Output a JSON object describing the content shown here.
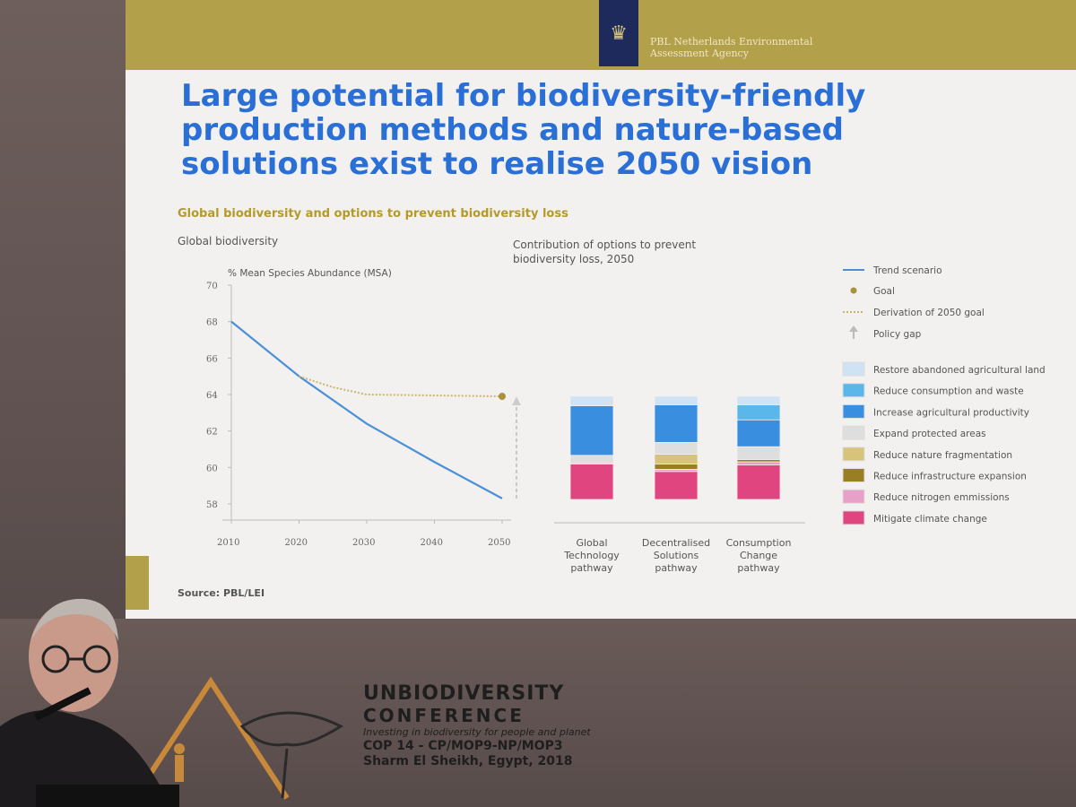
{
  "slide": {
    "agency_line1": "PBL Netherlands Environmental",
    "agency_line2": "Assessment Agency",
    "title_line1": "Large potential for biodiversity-friendly",
    "title_line2": "production methods and nature-based",
    "title_line3": "solutions exist to realise 2050 vision",
    "subtitle": "Global biodiversity and options to prevent biodiversity loss",
    "left_panel_title": "Global biodiversity",
    "right_panel_title_line1": "Contribution of options to prevent",
    "right_panel_title_line2": "biodiversity loss, 2050",
    "source": "Source: PBL/LEI"
  },
  "conference": {
    "line1_un": "UN",
    "line1_bio": "BIODIVERSITY",
    "line2": "CONFERENCE",
    "line3": "Investing in biodiversity for people and planet",
    "line4": "COP 14 - CP/MOP9-NP/MOP3",
    "line5": "Sharm El Sheikh, Egypt, 2018"
  },
  "chart_data": [
    {
      "type": "line",
      "ylabel": "% Mean Species Abundance (MSA)",
      "xlim": [
        2010,
        2050
      ],
      "ylim": [
        58,
        70
      ],
      "xticks": [
        "2010",
        "2020",
        "2030",
        "2040",
        "2050"
      ],
      "yticks": [
        "58",
        "60",
        "62",
        "64",
        "66",
        "68",
        "70"
      ],
      "grid": false,
      "series": [
        {
          "name": "Trend scenario",
          "color": "#4a90d9",
          "style": "solid",
          "x": [
            2010,
            2020,
            2030,
            2040,
            2050
          ],
          "y": [
            68.0,
            65.0,
            62.4,
            60.3,
            58.3
          ]
        },
        {
          "name": "Derivation of 2050 goal",
          "color": "#c9b86a",
          "style": "dotted",
          "x": [
            2020,
            2025,
            2030,
            2040,
            2050
          ],
          "y": [
            65.0,
            64.4,
            64.0,
            63.95,
            63.9
          ]
        }
      ],
      "goal": {
        "name": "Goal",
        "x": 2050,
        "y": 63.9,
        "color": "#a8923a"
      },
      "policy_gap": {
        "name": "Policy gap",
        "x": 2050,
        "from": 58.3,
        "to": 63.9
      }
    },
    {
      "type": "bar",
      "stacked": true,
      "categories": [
        "Global Technology pathway",
        "Decentralised Solutions pathway",
        "Consumption Change pathway"
      ],
      "category_lines": [
        [
          "Global",
          "Technology",
          "pathway"
        ],
        [
          "Decentralised",
          "Solutions",
          "pathway"
        ],
        [
          "Consumption",
          "Change",
          "pathway"
        ]
      ],
      "legend_placement": "right",
      "series": [
        {
          "name": "Mitigate climate change",
          "color": "#e0457f",
          "values": [
            3.3,
            2.6,
            3.2
          ]
        },
        {
          "name": "Reduce nitrogen emmissions",
          "color": "#e9a0c8",
          "values": [
            0.1,
            0.2,
            0.3
          ]
        },
        {
          "name": "Reduce infrastructure expansion",
          "color": "#9a7e22",
          "values": [
            0.0,
            0.5,
            0.2
          ]
        },
        {
          "name": "Reduce nature fragmentation",
          "color": "#d8c37a",
          "values": [
            0.0,
            0.9,
            0.0
          ]
        },
        {
          "name": "Expand protected areas",
          "color": "#dedede",
          "values": [
            0.7,
            1.1,
            1.2
          ]
        },
        {
          "name": "Increase agricultural productivity",
          "color": "#3a8ee0",
          "values": [
            4.6,
            3.5,
            2.5
          ]
        },
        {
          "name": "Reduce consumption and waste",
          "color": "#5bb6ea",
          "values": [
            0.0,
            0.0,
            1.4
          ]
        },
        {
          "name": "Restore abandoned agricultural land",
          "color": "#cfe3f5",
          "values": [
            0.9,
            0.8,
            0.8
          ]
        }
      ],
      "legend_order": [
        "Restore abandoned agricultural land",
        "Reduce consumption and waste",
        "Increase agricultural productivity",
        "Expand protected areas",
        "Reduce nature fragmentation",
        "Reduce infrastructure expansion",
        "Reduce nitrogen emmissions",
        "Mitigate climate change"
      ]
    }
  ],
  "legend_line_items": [
    "Trend scenario",
    "Goal",
    "Derivation of 2050 goal",
    "Policy gap"
  ]
}
